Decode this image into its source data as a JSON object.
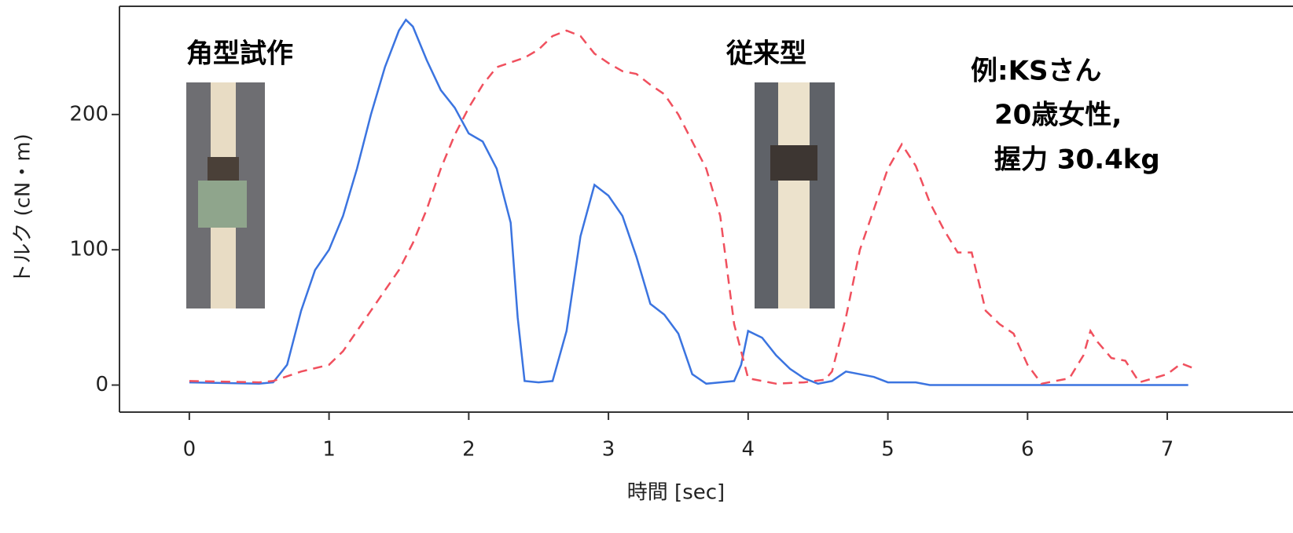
{
  "chart_data": {
    "type": "line",
    "xlabel": "時間 [sec]",
    "ylabel": "トルク (cN・m)",
    "xlim": [
      -0.5,
      7.9
    ],
    "ylim": [
      -20,
      280
    ],
    "xticks": [
      0,
      1,
      2,
      3,
      4,
      5,
      6,
      7
    ],
    "yticks": [
      0,
      100,
      200
    ],
    "annotations": [
      "角型試作",
      "従来型",
      "例:KSさん",
      "20歳女性,",
      "握力 30.4kg"
    ],
    "series": [
      {
        "color": "#3b74e0",
        "dashed": false,
        "x": [
          0,
          0.5,
          0.6,
          0.7,
          0.8,
          0.9,
          1.0,
          1.1,
          1.2,
          1.3,
          1.4,
          1.5,
          1.55,
          1.6,
          1.7,
          1.8,
          1.9,
          2.0,
          2.1,
          2.2,
          2.3,
          2.35,
          2.4,
          2.5,
          2.6,
          2.7,
          2.8,
          2.9,
          3.0,
          3.1,
          3.2,
          3.3,
          3.4,
          3.5,
          3.6,
          3.7,
          3.8,
          3.9,
          3.95,
          4.0,
          4.1,
          4.2,
          4.3,
          4.4,
          4.5,
          4.6,
          4.7,
          4.8,
          4.9,
          5.0,
          5.2,
          5.3,
          6.0,
          7.15
        ],
        "values": [
          2,
          1,
          2,
          15,
          55,
          85,
          100,
          125,
          160,
          200,
          235,
          262,
          270,
          265,
          240,
          218,
          205,
          186,
          180,
          160,
          120,
          50,
          3,
          2,
          3,
          40,
          110,
          148,
          140,
          125,
          95,
          60,
          52,
          38,
          8,
          1,
          2,
          3,
          15,
          40,
          35,
          22,
          12,
          5,
          1,
          3,
          10,
          8,
          6,
          2,
          2,
          0,
          0,
          0
        ]
      },
      {
        "color": "#f0505e",
        "dashed": true,
        "x": [
          0,
          0.5,
          0.6,
          0.8,
          1.0,
          1.1,
          1.2,
          1.3,
          1.4,
          1.5,
          1.6,
          1.7,
          1.8,
          1.9,
          2.0,
          2.1,
          2.2,
          2.4,
          2.5,
          2.6,
          2.7,
          2.8,
          2.9,
          3.0,
          3.1,
          3.2,
          3.3,
          3.4,
          3.5,
          3.6,
          3.7,
          3.8,
          3.9,
          4.0,
          4.2,
          4.4,
          4.55,
          4.6,
          4.7,
          4.8,
          4.9,
          5.0,
          5.1,
          5.2,
          5.3,
          5.4,
          5.5,
          5.6,
          5.7,
          5.8,
          5.9,
          6.0,
          6.1,
          6.3,
          6.4,
          6.45,
          6.5,
          6.6,
          6.7,
          6.8,
          6.9,
          7.0,
          7.1,
          7.2
        ],
        "values": [
          3,
          2,
          3,
          10,
          15,
          25,
          40,
          55,
          70,
          85,
          105,
          130,
          160,
          185,
          205,
          222,
          235,
          242,
          248,
          258,
          262,
          258,
          245,
          238,
          232,
          230,
          222,
          215,
          200,
          180,
          160,
          125,
          45,
          5,
          1,
          2,
          4,
          10,
          50,
          100,
          130,
          160,
          178,
          162,
          135,
          115,
          98,
          98,
          55,
          45,
          38,
          15,
          1,
          5,
          22,
          40,
          32,
          20,
          18,
          2,
          5,
          8,
          16,
          12
        ]
      }
    ]
  }
}
